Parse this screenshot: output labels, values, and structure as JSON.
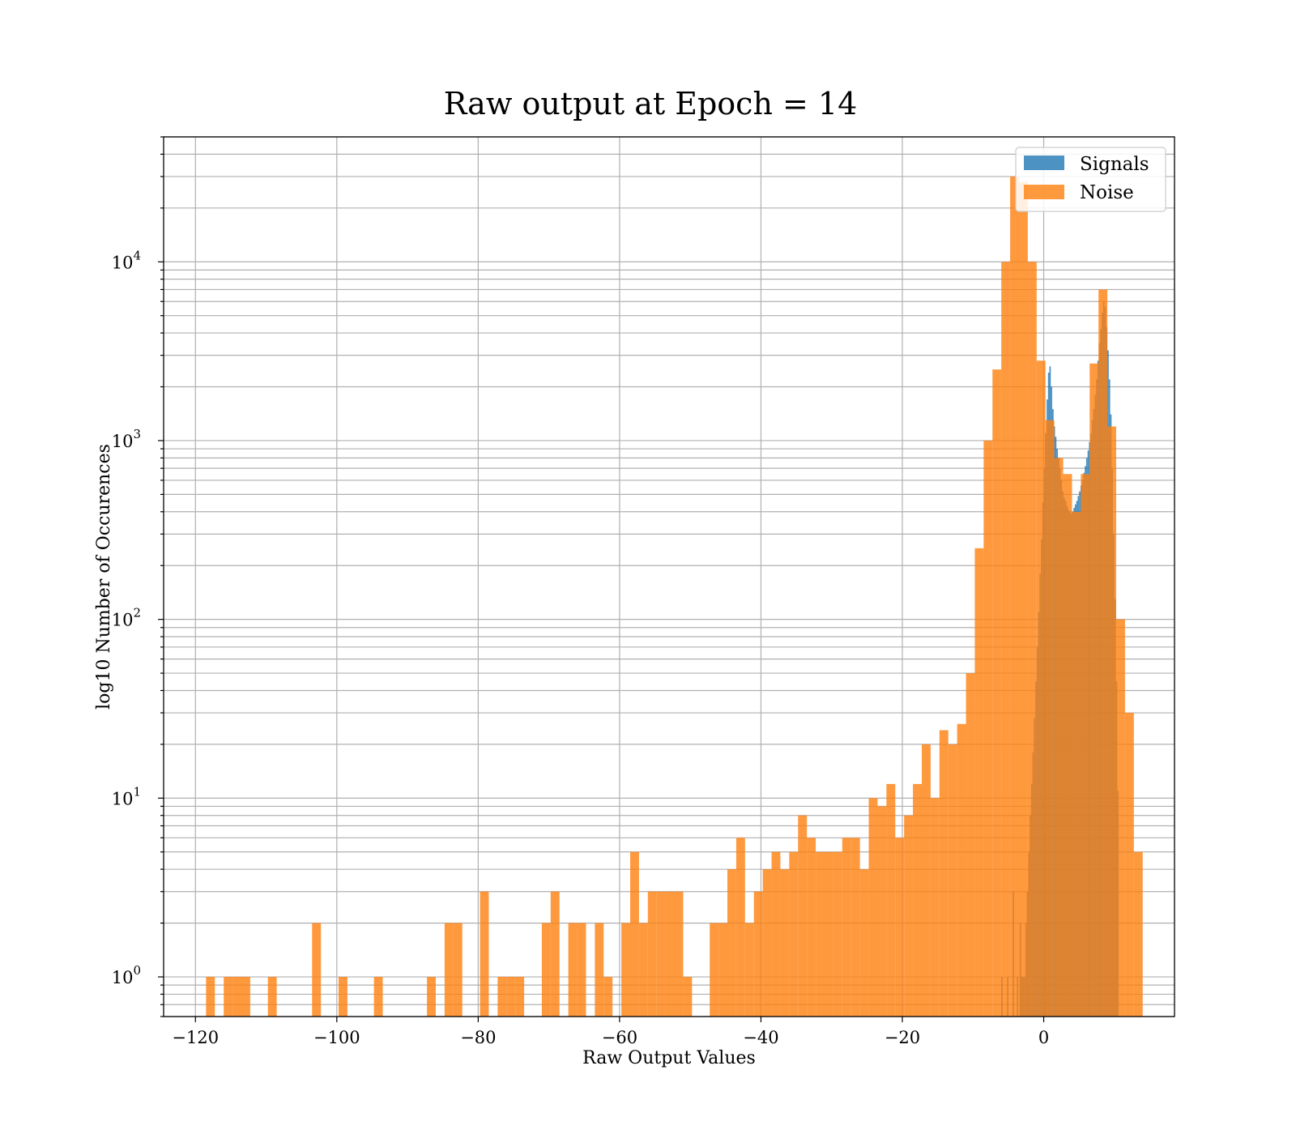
{
  "chart_data": {
    "type": "bar",
    "title": "Raw output at Epoch = 14",
    "xlabel": "Raw Output Values",
    "ylabel": "log10 Number of Occurences",
    "xlim": [
      -124.5,
      18.5
    ],
    "ylim": [
      0.6,
      50000
    ],
    "yscale": "log",
    "grid": true,
    "legend_position": "top-right",
    "x_ticks": [
      -120,
      -100,
      -80,
      -60,
      -40,
      -20,
      0
    ],
    "x_tick_labels": [
      "−120",
      "−100",
      "−80",
      "−60",
      "−40",
      "−20",
      "0"
    ],
    "y_ticks": [
      {
        "value": 1,
        "base": "10",
        "exp": "0"
      },
      {
        "value": 10,
        "base": "10",
        "exp": "1"
      },
      {
        "value": 100,
        "base": "10",
        "exp": "2"
      },
      {
        "value": 1000,
        "base": "10",
        "exp": "3"
      },
      {
        "value": 10000,
        "base": "10",
        "exp": "4"
      }
    ],
    "series": [
      {
        "name": "Signals",
        "color": "#1f77b4",
        "opacity": 0.8,
        "bin_start": -6.0,
        "bin_width": 0.2,
        "counts": [
          1,
          0,
          0,
          0,
          1,
          0,
          0,
          0,
          3,
          0,
          0,
          1,
          0,
          2,
          1,
          1,
          1,
          2,
          3,
          5,
          8,
          12,
          18,
          28,
          45,
          70,
          110,
          180,
          280,
          450,
          700,
          1100,
          1700,
          2400,
          2600,
          2000,
          1500,
          1200,
          1050,
          900,
          800,
          700,
          600,
          520,
          480,
          460,
          430,
          410,
          400,
          390,
          400,
          420,
          440,
          460,
          490,
          520,
          560,
          600,
          660,
          720,
          800,
          880,
          980,
          1100,
          1300,
          1500,
          1800,
          2200,
          2800,
          3500,
          4200,
          5200,
          6000,
          5600,
          4300,
          3200,
          2200,
          1400,
          700,
          300,
          130,
          45,
          11
        ]
      },
      {
        "name": "Noise",
        "color": "#ff7f0e",
        "opacity": 0.8,
        "bin_start": -123.5,
        "bin_width": 1.25,
        "counts": [
          0,
          0,
          0,
          0,
          1,
          0,
          1,
          1,
          1,
          0,
          0,
          1,
          0,
          0,
          0,
          0,
          2,
          0,
          0,
          1,
          0,
          0,
          0,
          1,
          0,
          0,
          0,
          0,
          0,
          1,
          0,
          2,
          2,
          0,
          0,
          3,
          0,
          1,
          1,
          1,
          0,
          0,
          2,
          3,
          0,
          2,
          2,
          0,
          2,
          1,
          0,
          2,
          5,
          2,
          3,
          3,
          3,
          3,
          1,
          0,
          0,
          2,
          2,
          4,
          6,
          2,
          3,
          4,
          5,
          4,
          5,
          8,
          6,
          5,
          5,
          5,
          6,
          6,
          4,
          10,
          9,
          12,
          6,
          8,
          12,
          20,
          10,
          24,
          20,
          26,
          50,
          250,
          1000,
          2500,
          10000,
          30000,
          28000,
          10000,
          2800,
          1300,
          800,
          650,
          400,
          650,
          2700,
          7000,
          1200,
          100,
          30,
          5
        ]
      }
    ]
  }
}
